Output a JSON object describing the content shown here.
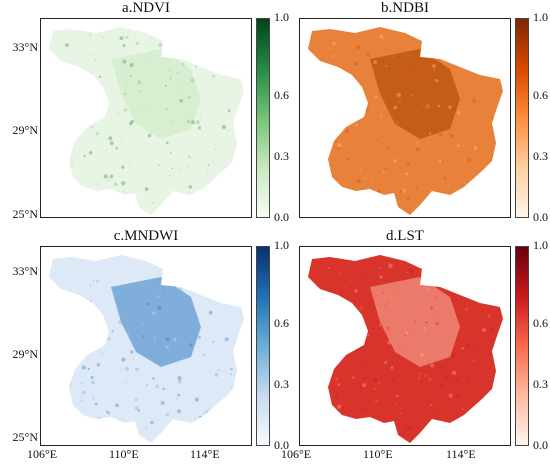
{
  "panels": {
    "a": {
      "title": "a.NDVI",
      "colors": [
        "#f7fcf5",
        "#c7e9c0",
        "#74c476",
        "#238b45",
        "#00441b"
      ],
      "fill": "#e9f5e4",
      "shade": "#cfe9c6"
    },
    "b": {
      "title": "b.NDBI",
      "colors": [
        "#fff5eb",
        "#fdd0a2",
        "#fd8d3c",
        "#d94801",
        "#7f2704"
      ],
      "fill": "#e8823a",
      "shade": "#b24a06"
    },
    "c": {
      "title": "c.MNDWI",
      "colors": [
        "#f7fbff",
        "#c6dbef",
        "#6baed6",
        "#2171b5",
        "#08306b"
      ],
      "fill": "#dde9f6",
      "shade": "#4f8fcb"
    },
    "d": {
      "title": "d.LST",
      "colors": [
        "#fff5f0",
        "#fcbba1",
        "#fb6a4a",
        "#cb181d",
        "#67000d"
      ],
      "fill": "#d9342c",
      "shade": "#f4a08c"
    }
  },
  "colorbar_ticks": [
    "1.0",
    "0.6",
    "0.3",
    "0.0"
  ],
  "lat_labels": [
    "33°N",
    "29°N",
    "25°N"
  ],
  "lon_labels": [
    "106°E",
    "110°E",
    "114°E"
  ]
}
